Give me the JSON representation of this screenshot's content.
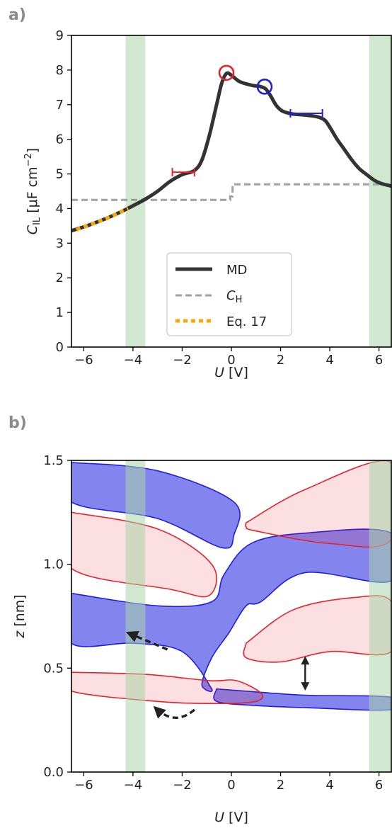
{
  "figure": {
    "panel_a_label": "a)",
    "panel_b_label": "b)"
  },
  "colors": {
    "md": "#333333",
    "ch": "#a0a0a0",
    "eq17": "#ffa500",
    "band": "#a9d3a9",
    "red": "#e8222b",
    "blue": "#1f1fe0"
  },
  "chart_data": [
    {
      "type": "line",
      "xlabel_var": "U",
      "xlabel_unit": " [V]",
      "ylabel_var": "C",
      "ylabel_sub": "IL",
      "ylabel_unit": " [μF cm",
      "ylabel_exp": "−2",
      "ylabel_close": "]",
      "xlim": [
        -6.5,
        6.5
      ],
      "ylim": [
        0,
        9
      ],
      "xticks": [
        "−6",
        "−4",
        "−2",
        "0",
        "2",
        "4",
        "6"
      ],
      "xtick_values": [
        -6,
        -4,
        -2,
        0,
        2,
        4,
        6
      ],
      "yticks": [
        "0",
        "1",
        "2",
        "3",
        "4",
        "5",
        "6",
        "7",
        "8",
        "9"
      ],
      "ytick_values": [
        0,
        1,
        2,
        3,
        4,
        5,
        6,
        7,
        8,
        9
      ],
      "shaded_bands": [
        [
          -4.3,
          -3.5
        ],
        [
          5.6,
          6.5
        ]
      ],
      "series": [
        {
          "name": "MD",
          "style": "solid",
          "x": [
            -6.5,
            -6,
            -5.5,
            -5,
            -4.5,
            -4,
            -3.5,
            -3,
            -2.5,
            -2,
            -1.5,
            -1.2,
            -0.9,
            -0.6,
            -0.4,
            -0.2,
            0,
            0.3,
            0.6,
            0.9,
            1.2,
            1.4,
            1.6,
            1.8,
            2.0,
            2.2,
            2.5,
            3.0,
            3.5,
            3.8,
            4.0,
            4.3,
            4.6,
            4.9,
            5.2,
            5.5,
            5.8,
            6.1,
            6.5
          ],
          "y": [
            3.36,
            3.47,
            3.6,
            3.74,
            3.9,
            4.08,
            4.27,
            4.5,
            4.78,
            4.98,
            5.1,
            5.4,
            6.1,
            7.0,
            7.6,
            7.9,
            7.85,
            7.68,
            7.6,
            7.55,
            7.52,
            7.45,
            7.25,
            7.0,
            6.85,
            6.78,
            6.73,
            6.7,
            6.65,
            6.55,
            6.35,
            6.0,
            5.7,
            5.4,
            5.15,
            4.98,
            4.82,
            4.72,
            4.65
          ]
        },
        {
          "name": "C",
          "name_sub": "H",
          "style": "dashed",
          "x": [
            -6.5,
            -0.05,
            -0.05,
            0.05,
            0.05,
            6.5
          ],
          "y": [
            4.25,
            4.25,
            4.35,
            4.35,
            4.7,
            4.7
          ]
        },
        {
          "name": "Eq. 17",
          "style": "dotted",
          "x": [
            -6.3,
            -6,
            -5.5,
            -5,
            -4.5,
            -4.2
          ],
          "y": [
            3.39,
            3.47,
            3.6,
            3.74,
            3.9,
            4.0
          ]
        }
      ],
      "markers": [
        {
          "type": "circle",
          "x": -0.2,
          "y": 7.92,
          "color": "red"
        },
        {
          "type": "circle",
          "x": 1.35,
          "y": 7.52,
          "color": "blue"
        }
      ],
      "error_bars": [
        {
          "x_from": -2.4,
          "x_to": -1.5,
          "y": 5.05,
          "color": "red"
        },
        {
          "x_from": 2.4,
          "x_to": 3.7,
          "y": 6.75,
          "color": "blue"
        }
      ],
      "legend": {
        "placement": "lower-center",
        "entries": [
          "MD",
          "C",
          "Eq. 17"
        ],
        "entry_sub": [
          "",
          "H",
          ""
        ]
      }
    },
    {
      "type": "contour",
      "xlabel_var": "U",
      "xlabel_unit": " [V]",
      "ylabel_var": "z",
      "ylabel_unit": " [nm]",
      "xlim": [
        -6.5,
        6.5
      ],
      "ylim": [
        0,
        1.5
      ],
      "xticks": [
        "−6",
        "−4",
        "−2",
        "0",
        "2",
        "4",
        "6"
      ],
      "xtick_values": [
        -6,
        -4,
        -2,
        0,
        2,
        4,
        6
      ],
      "yticks": [
        "0.0",
        "0.5",
        "1.0",
        "1.5"
      ],
      "ytick_values": [
        0.0,
        0.5,
        1.0,
        1.5
      ],
      "shaded_bands": [
        [
          -4.3,
          -3.5
        ],
        [
          5.6,
          6.5
        ]
      ],
      "regions": [
        {
          "name": "blue-upper-layer",
          "color": "blue",
          "x": [
            -6.5,
            -3,
            0.1,
            0.1,
            -0.4,
            -3,
            -6.5
          ],
          "y": [
            1.49,
            1.45,
            1.3,
            1.14,
            1.08,
            1.22,
            1.3
          ]
        },
        {
          "name": "blue-middle-band",
          "color": "blue",
          "x": [
            -6.5,
            -3,
            -0.8,
            -0.3,
            0.8,
            3,
            6.5,
            6.5,
            3,
            1.2,
            0.6,
            -0.1,
            -0.8,
            -1.2,
            -0.8,
            -2,
            -4,
            -6.5
          ],
          "y": [
            0.86,
            0.8,
            0.82,
            0.95,
            1.1,
            1.15,
            1.15,
            0.92,
            0.96,
            0.82,
            0.8,
            0.67,
            0.55,
            0.42,
            0.4,
            0.58,
            0.62,
            0.62
          ]
        },
        {
          "name": "blue-surface-layer",
          "color": "blue",
          "x": [
            -0.6,
            0.5,
            3,
            6.5,
            6.5,
            3,
            1,
            -0.6
          ],
          "y": [
            0.4,
            0.39,
            0.37,
            0.36,
            0.3,
            0.31,
            0.32,
            0.34
          ]
        },
        {
          "name": "red-upper-layer",
          "color": "red",
          "x": [
            0.6,
            3,
            6.5,
            6.5,
            4,
            1,
            0.6
          ],
          "y": [
            1.2,
            1.36,
            1.49,
            1.12,
            1.1,
            1.16,
            1.18
          ]
        },
        {
          "name": "red-middle-layer",
          "color": "red",
          "x": [
            -6.5,
            -3,
            -0.8,
            -0.9,
            -2.5,
            -6.5
          ],
          "y": [
            1.25,
            1.17,
            1.0,
            0.85,
            0.88,
            0.98
          ]
        },
        {
          "name": "red-lower-band",
          "color": "red",
          "x": [
            0.6,
            2.5,
            5,
            6.5,
            6.5,
            4,
            2,
            0.6
          ],
          "y": [
            0.62,
            0.78,
            0.84,
            0.82,
            0.58,
            0.58,
            0.53,
            0.55
          ]
        },
        {
          "name": "red-surface-layer",
          "color": "red",
          "x": [
            -6.5,
            -3.5,
            -0.9,
            0.2,
            1.2,
            1.0,
            -0.5,
            -3,
            -6.5
          ],
          "y": [
            0.48,
            0.47,
            0.44,
            0.44,
            0.38,
            0.34,
            0.33,
            0.34,
            0.39
          ]
        }
      ],
      "arrows": [
        {
          "name": "dashed-arrow-up-left",
          "style": "dashed",
          "from": [
            -2.6,
            0.59
          ],
          "to": [
            -4.2,
            0.67
          ]
        },
        {
          "name": "dashed-arrow-curved",
          "style": "dashed",
          "from": [
            -1.5,
            0.3
          ],
          "to": [
            -3.1,
            0.31
          ]
        },
        {
          "name": "double-arrow",
          "style": "solid",
          "from": [
            3.0,
            0.4
          ],
          "to": [
            3.0,
            0.55
          ]
        }
      ]
    }
  ]
}
